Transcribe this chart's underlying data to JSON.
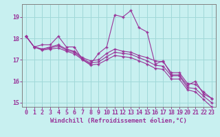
{
  "xlabel": "Windchill (Refroidissement éolien,°C)",
  "background_color": "#c8f0f0",
  "grid_color": "#a0d8d8",
  "line_color": "#993399",
  "spine_color": "#808080",
  "xlim": [
    -0.5,
    23.5
  ],
  "ylim": [
    14.8,
    19.6
  ],
  "yticks": [
    15,
    16,
    17,
    18,
    19
  ],
  "xticks": [
    0,
    1,
    2,
    3,
    4,
    5,
    6,
    7,
    8,
    9,
    10,
    11,
    12,
    13,
    14,
    15,
    16,
    17,
    18,
    19,
    20,
    21,
    22,
    23
  ],
  "series1_x": [
    0,
    1,
    2,
    3,
    4,
    5,
    6,
    7,
    8,
    9,
    10,
    11,
    12,
    13,
    14,
    15,
    16,
    17,
    18,
    19,
    20,
    21,
    22,
    23
  ],
  "series1_y": [
    18.1,
    17.6,
    17.7,
    17.7,
    18.1,
    17.6,
    17.6,
    17.0,
    16.8,
    17.3,
    17.6,
    19.1,
    19.0,
    19.3,
    18.5,
    18.3,
    16.8,
    16.95,
    16.3,
    16.3,
    15.8,
    16.0,
    15.4,
    15.2
  ],
  "series2_x": [
    0,
    1,
    2,
    3,
    4,
    5,
    6,
    7,
    8,
    9,
    10,
    11,
    12,
    13,
    14,
    15,
    16,
    17,
    18,
    19,
    20,
    21,
    22,
    23
  ],
  "series2_y": [
    18.1,
    17.6,
    17.5,
    17.6,
    17.7,
    17.5,
    17.4,
    17.1,
    16.95,
    17.0,
    17.3,
    17.5,
    17.4,
    17.35,
    17.2,
    17.1,
    16.95,
    16.9,
    16.4,
    16.4,
    15.9,
    15.85,
    15.5,
    15.2
  ],
  "series3_x": [
    0,
    1,
    2,
    3,
    4,
    5,
    6,
    7,
    8,
    9,
    10,
    11,
    12,
    13,
    14,
    15,
    16,
    17,
    18,
    19,
    20,
    21,
    22,
    23
  ],
  "series3_y": [
    18.1,
    17.6,
    17.5,
    17.55,
    17.65,
    17.45,
    17.35,
    17.05,
    16.85,
    16.9,
    17.15,
    17.35,
    17.3,
    17.25,
    17.1,
    16.95,
    16.75,
    16.7,
    16.25,
    16.25,
    15.7,
    15.65,
    15.3,
    15.0
  ],
  "series4_x": [
    0,
    1,
    2,
    3,
    4,
    5,
    6,
    7,
    8,
    9,
    10,
    11,
    12,
    13,
    14,
    15,
    16,
    17,
    18,
    19,
    20,
    21,
    22,
    23
  ],
  "series4_y": [
    18.1,
    17.6,
    17.45,
    17.5,
    17.55,
    17.4,
    17.28,
    17.0,
    16.75,
    16.8,
    17.0,
    17.2,
    17.15,
    17.1,
    16.95,
    16.8,
    16.6,
    16.55,
    16.1,
    16.1,
    15.6,
    15.5,
    15.15,
    14.8
  ],
  "marker": "+",
  "markersize": 3,
  "linewidth": 0.8,
  "fontsize_ticks": 6,
  "fontsize_label": 6.5
}
